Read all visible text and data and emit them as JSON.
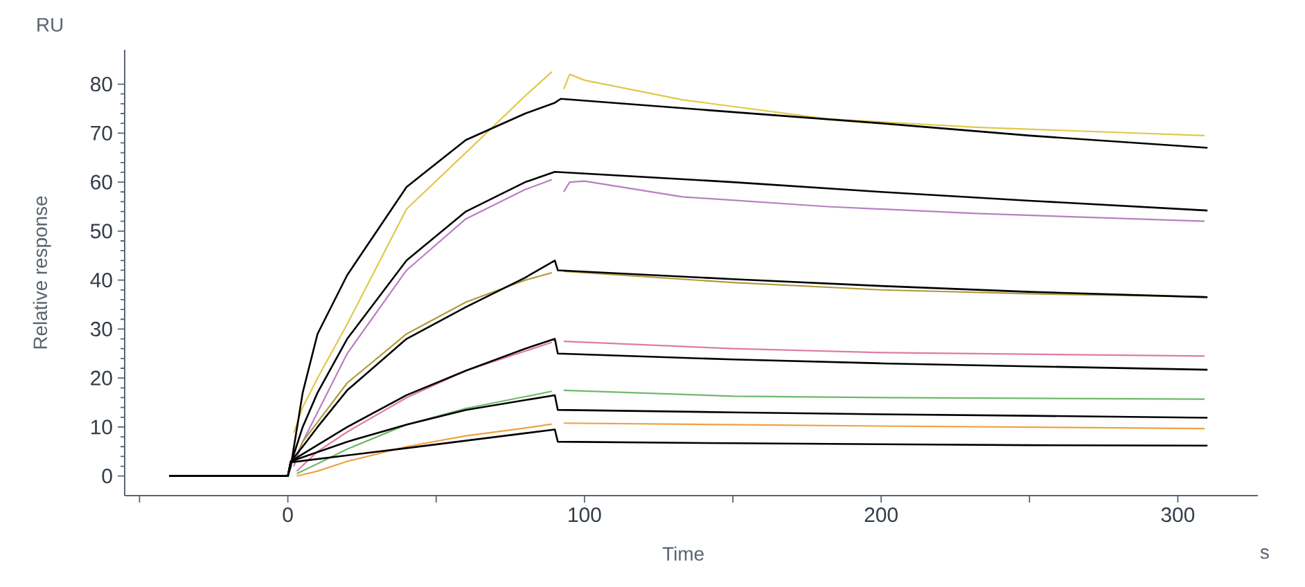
{
  "chart_data": {
    "type": "line",
    "xlabel": "Time",
    "ylabel": "Relative response",
    "annotations": [
      "RU",
      "s"
    ],
    "xlim": [
      -55,
      327
    ],
    "ylim": [
      -4,
      87
    ],
    "xticks": [
      {
        "value": -50,
        "label": null
      },
      0,
      {
        "value": 50,
        "label": null
      },
      100,
      {
        "value": 150,
        "label": null
      },
      200,
      {
        "value": 250,
        "label": null
      },
      300
    ],
    "yticks": [
      0,
      10,
      20,
      30,
      40,
      50,
      60,
      70,
      80
    ],
    "marker": "none",
    "line_style": "solid",
    "series": [
      {
        "color": "#e0c84a",
        "x": [
          2,
          5,
          10,
          20,
          40,
          60,
          80,
          89,
          91,
          93,
          95,
          100,
          133,
          182,
          232,
          309
        ],
        "values": [
          8.8,
          14,
          20,
          31,
          54.5,
          66,
          77.6,
          82.5,
          null,
          79,
          82,
          80.8,
          76.8,
          72.9,
          71.2,
          69.5
        ]
      },
      {
        "color": "#b77fc0",
        "x": [
          2,
          5,
          10,
          20,
          40,
          60,
          80,
          89,
          91,
          93,
          95,
          100,
          133,
          182,
          232,
          309
        ],
        "values": [
          2,
          7,
          13,
          25,
          42,
          52.5,
          58.5,
          60.5,
          null,
          58,
          60,
          60.2,
          57,
          55,
          53.6,
          52
        ]
      },
      {
        "color": "#b09a3c",
        "x": [
          2,
          5,
          10,
          20,
          40,
          60,
          80,
          89,
          91,
          93,
          150,
          200,
          250,
          309
        ],
        "values": [
          3,
          7,
          11,
          19,
          29,
          35.5,
          40,
          41.5,
          null,
          41.8,
          39.5,
          38,
          37.2,
          36.6
        ]
      },
      {
        "color": "#e07aa8",
        "x": [
          3,
          10,
          20,
          40,
          60,
          80,
          89,
          91,
          93,
          150,
          200,
          309
        ],
        "values": [
          1,
          5,
          9,
          16,
          21.5,
          25.5,
          27.3,
          null,
          27.5,
          26,
          25.2,
          24.5
        ]
      },
      {
        "color": "#6fb86a",
        "x": [
          3,
          10,
          20,
          40,
          60,
          80,
          89,
          91,
          93,
          150,
          200,
          309
        ],
        "values": [
          0.5,
          2.5,
          5.5,
          10.5,
          13.8,
          16.2,
          17.3,
          null,
          17.5,
          16.3,
          16,
          15.7
        ]
      },
      {
        "color": "#f0a040",
        "x": [
          3,
          10,
          20,
          40,
          60,
          80,
          89,
          91,
          93,
          200,
          309
        ],
        "values": [
          0,
          1,
          3,
          6,
          8.2,
          9.8,
          10.6,
          null,
          10.8,
          10.2,
          9.7
        ]
      },
      {
        "color": "#000000",
        "x": [
          -40,
          0,
          1,
          5,
          10,
          20,
          40,
          60,
          80,
          90,
          92,
          150,
          200,
          250,
          310
        ],
        "values": [
          0,
          0,
          2,
          17,
          29,
          41,
          59,
          68.6,
          74,
          76.2,
          77,
          74.3,
          72,
          69.5,
          67
        ]
      },
      {
        "color": "#000000",
        "x": [
          -40,
          0,
          1,
          5,
          10,
          20,
          40,
          60,
          80,
          90,
          150,
          200,
          250,
          310
        ],
        "values": [
          0,
          0,
          2.5,
          10,
          17,
          28,
          44,
          54,
          60,
          62.1,
          60,
          58,
          56.2,
          54.2
        ]
      },
      {
        "color": "#000000",
        "x": [
          -40,
          0,
          1,
          5,
          10,
          20,
          40,
          60,
          80,
          90,
          91,
          150,
          200,
          250,
          310
        ],
        "values": [
          0,
          0,
          3,
          6,
          10,
          17.5,
          28,
          34.5,
          40.5,
          44,
          42,
          40.2,
          38.8,
          37.6,
          36.5
        ]
      },
      {
        "color": "#000000",
        "x": [
          -40,
          0,
          1,
          20,
          40,
          60,
          80,
          90,
          91,
          150,
          200,
          250,
          310
        ],
        "values": [
          0,
          0,
          3,
          10,
          16.5,
          21.5,
          26,
          28,
          25,
          23.8,
          23,
          22.4,
          21.7
        ]
      },
      {
        "color": "#000000",
        "x": [
          -40,
          0,
          1,
          20,
          40,
          60,
          80,
          90,
          91,
          150,
          200,
          250,
          310
        ],
        "values": [
          0,
          0,
          3,
          7,
          10.5,
          13.5,
          15.5,
          16.5,
          13.5,
          13,
          12.6,
          12.3,
          11.9
        ]
      },
      {
        "color": "#000000",
        "x": [
          -40,
          0,
          1,
          40,
          90,
          91,
          150,
          200,
          250,
          310
        ],
        "values": [
          0,
          0,
          2.8,
          5.7,
          9.5,
          7,
          6.7,
          6.5,
          6.3,
          6.2
        ]
      }
    ]
  }
}
